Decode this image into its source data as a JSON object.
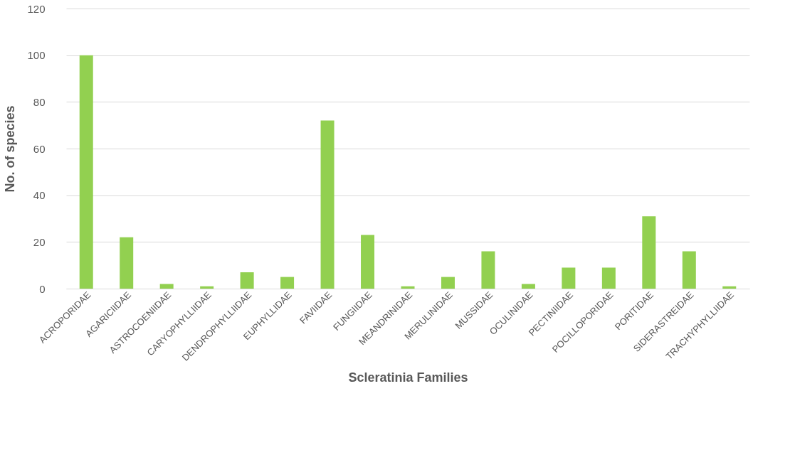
{
  "chart_data": {
    "type": "bar",
    "xlabel": "Scleratinia Families",
    "ylabel": "No. of species",
    "categories": [
      "ACROPORIDAE",
      "AGARICIIDAE",
      "ASTROCOENIIDAE",
      "CARYOPHYLLIIDAE",
      "DENDROPHYLLIIDAE",
      "EUPHYLLIDAE",
      "FAVIIDAE",
      "FUNGIIDAE",
      "MEANDRINIDAE",
      "MERULINIDAE",
      "MUSSIDAE",
      "OCULINIDAE",
      "PECTINIIDAE",
      "POCILLOPORIDAE",
      "PORITIDAE",
      "SIDERASTREIDAE",
      "TRACHYPHYLLIIDAE"
    ],
    "values": [
      100,
      22,
      2,
      1,
      7,
      5,
      72,
      23,
      1,
      5,
      16,
      2,
      9,
      9,
      31,
      16,
      1
    ],
    "color": "#92d050",
    "ylim": [
      0,
      120
    ],
    "yticks": [
      0,
      20,
      40,
      60,
      80,
      100,
      120
    ],
    "grid": "y"
  }
}
